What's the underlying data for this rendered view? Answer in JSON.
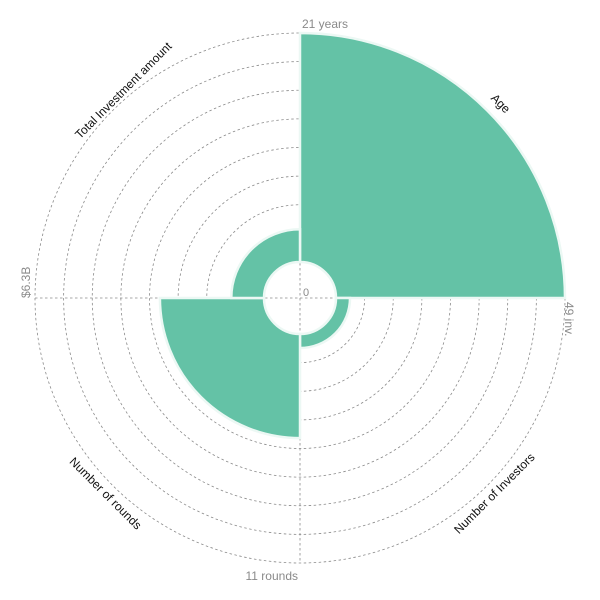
{
  "chart_data": {
    "type": "polar-area",
    "categories": [
      "Age",
      "Number of Investors",
      "Number of rounds",
      "Total Investment amount"
    ],
    "values": [
      21,
      3,
      5,
      0.9
    ],
    "max_values": [
      21,
      49,
      11,
      6.3
    ],
    "max_labels": [
      "21 years",
      "49 inv.",
      "11 rounds",
      "$6.3B"
    ],
    "zero_label": "0",
    "ring_count": 8,
    "grid": true,
    "color": "#64c2a6"
  }
}
